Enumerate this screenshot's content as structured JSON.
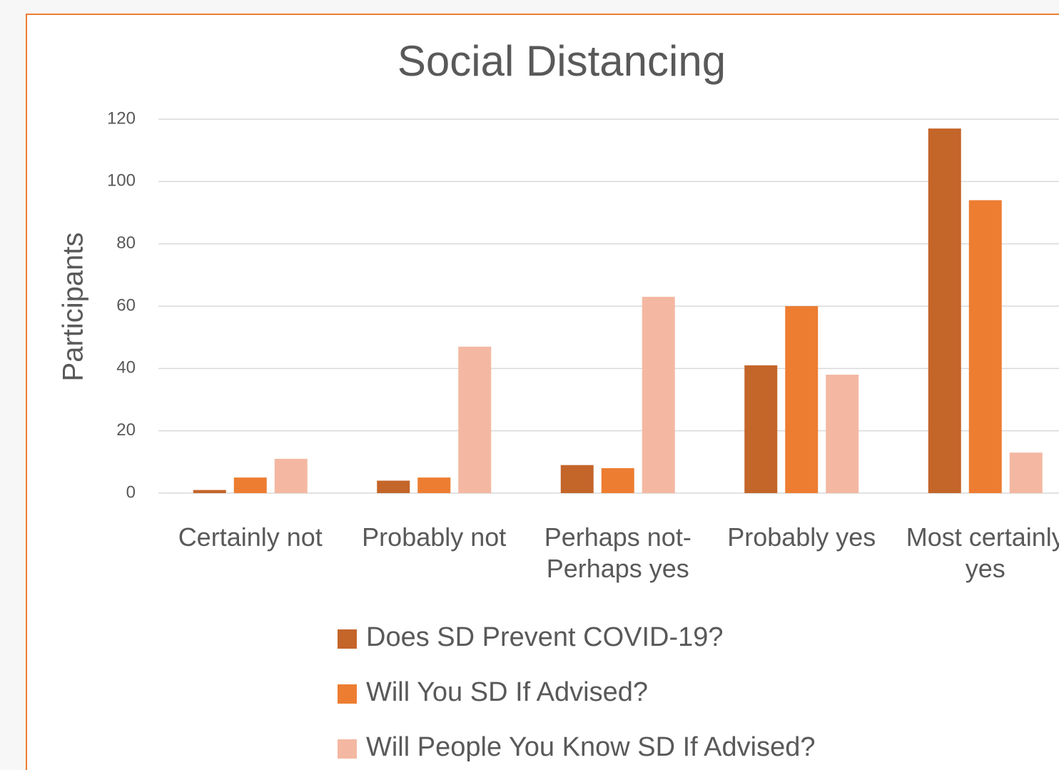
{
  "chart_data": {
    "type": "bar",
    "title": "Social Distancing",
    "y_label": "Participants",
    "categories": [
      "Certainly not",
      "Probably not",
      "Perhaps not-Perhaps yes",
      "Probably yes",
      "Most certainly yes"
    ],
    "series": [
      {
        "name": "Does SD Prevent COVID-19?",
        "color": "#c4652a",
        "values": [
          1,
          4,
          9,
          41,
          117
        ]
      },
      {
        "name": "Will You SD If Advised?",
        "color": "#ed7d31",
        "values": [
          5,
          5,
          8,
          60,
          94
        ]
      },
      {
        "name": "Will People You Know SD If Advised?",
        "color": "#f4b8a2",
        "values": [
          11,
          47,
          63,
          38,
          13
        ]
      }
    ],
    "ylim": [
      0,
      120
    ],
    "yticks": [
      0,
      20,
      40,
      60,
      80,
      100,
      120
    ],
    "grid": true,
    "legend": "bottom"
  }
}
